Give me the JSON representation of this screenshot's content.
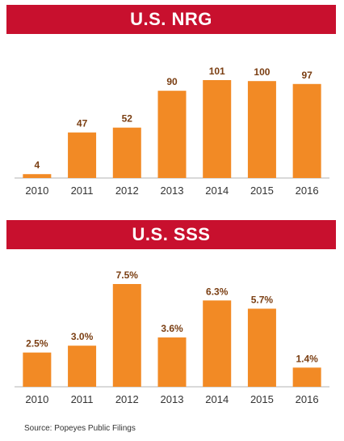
{
  "colors": {
    "banner": "#c8102e",
    "bar": "#f28a25",
    "value_label": "#7a3e12",
    "tick_label": "#333333",
    "axis": "#b3b3b3"
  },
  "source": "Source: Popeyes Public Filings",
  "chart_data": [
    {
      "type": "bar",
      "title": "U.S. NRG",
      "categories": [
        "2010",
        "2011",
        "2012",
        "2013",
        "2014",
        "2015",
        "2016"
      ],
      "values": [
        4,
        47,
        52,
        90,
        101,
        100,
        97
      ],
      "labels": [
        "4",
        "47",
        "52",
        "90",
        "101",
        "100",
        "97"
      ],
      "ylim": [
        0,
        101
      ],
      "xlabel": "",
      "ylabel": "",
      "grid": false
    },
    {
      "type": "bar",
      "title": "U.S. SSS",
      "categories": [
        "2010",
        "2011",
        "2012",
        "2013",
        "2014",
        "2015",
        "2016"
      ],
      "values": [
        2.5,
        3.0,
        7.5,
        3.6,
        6.3,
        5.7,
        1.4
      ],
      "labels": [
        "2.5%",
        "3.0%",
        "7.5%",
        "3.6%",
        "6.3%",
        "5.7%",
        "1.4%"
      ],
      "ylim": [
        0,
        7.5
      ],
      "xlabel": "",
      "ylabel": "",
      "grid": false
    }
  ]
}
